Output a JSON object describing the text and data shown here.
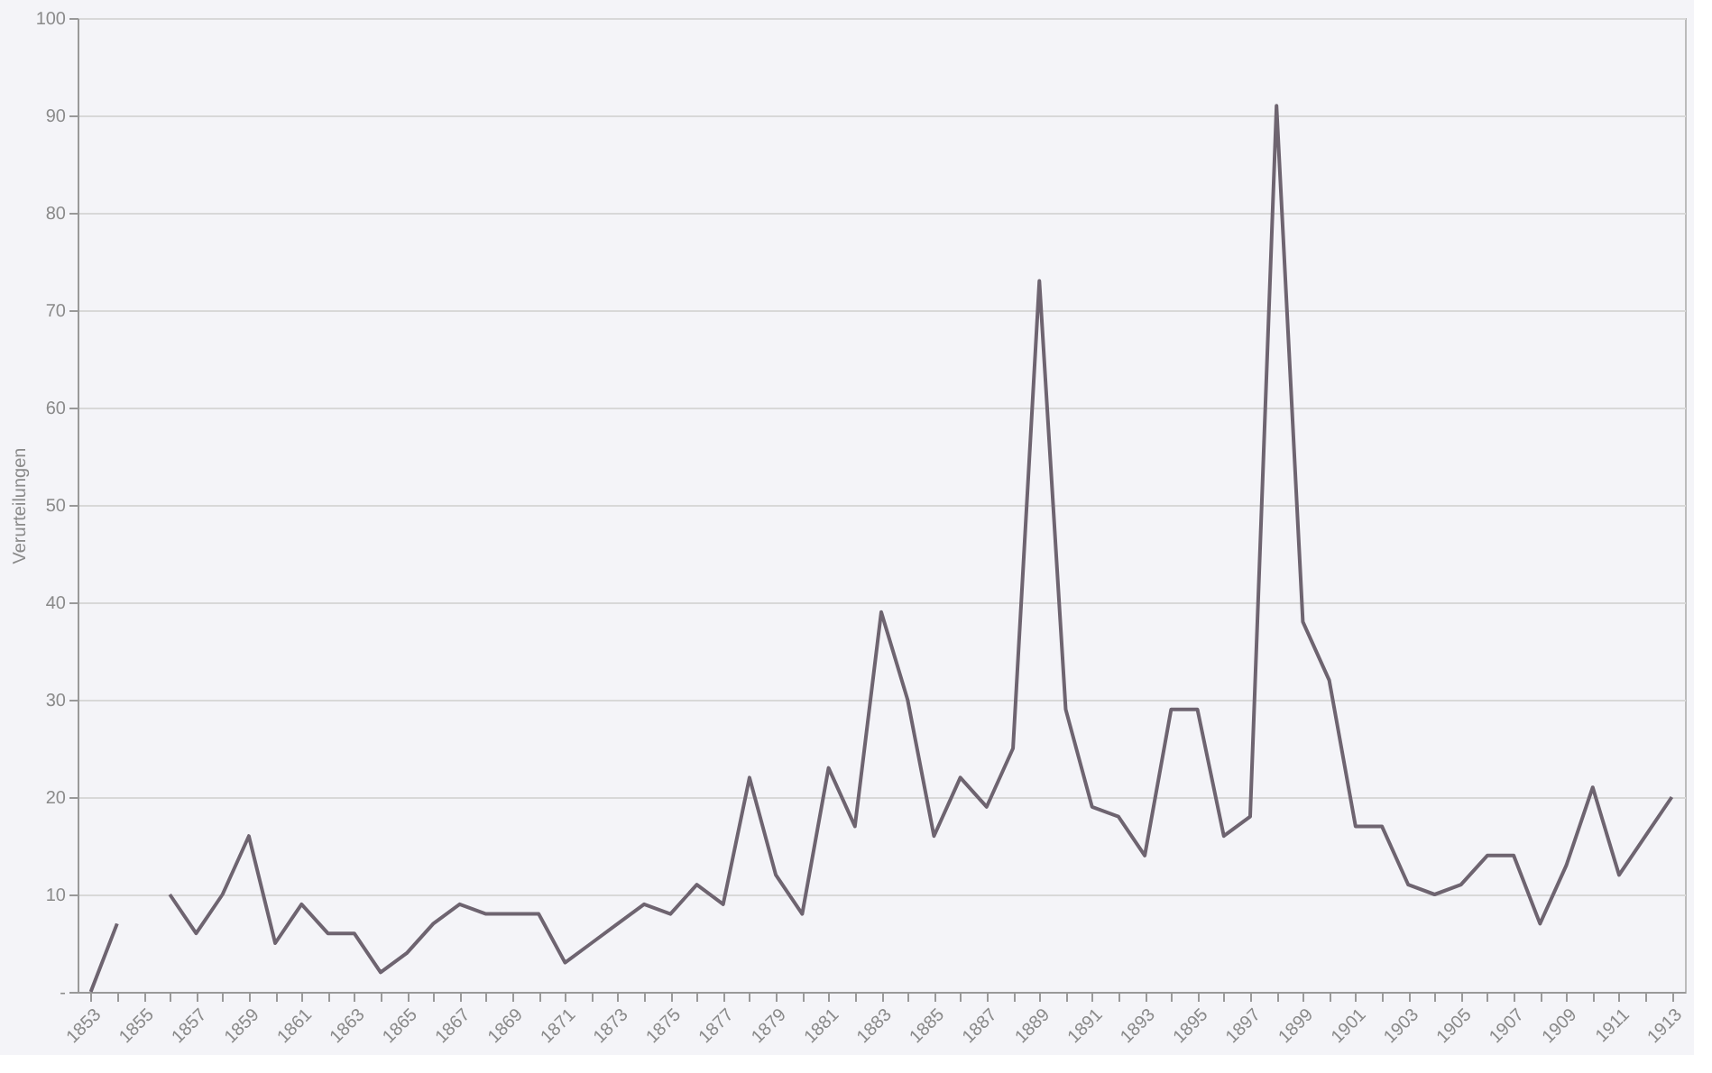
{
  "chart_data": {
    "type": "line",
    "ylabel": "Verurteilungen",
    "categories": [
      "1853",
      null,
      "1855",
      null,
      "1857",
      null,
      "1859",
      null,
      "1861",
      null,
      "1863",
      null,
      "1865",
      null,
      "1867",
      null,
      "1869",
      null,
      "1871",
      null,
      "1873",
      null,
      "1875",
      null,
      "1877",
      null,
      "1879",
      null,
      "1881",
      null,
      "1883",
      null,
      "1885",
      null,
      "1887",
      null,
      "1889",
      null,
      "1891",
      null,
      "1893",
      null,
      "1895",
      null,
      "1897",
      null,
      "1899",
      null,
      "1901",
      null,
      "1903",
      null,
      "1905",
      null,
      "1907",
      null,
      "1909",
      null,
      "1911",
      null,
      "1913"
    ],
    "series": [
      {
        "color": "#6e6470",
        "values": [
          0,
          7,
          null,
          10,
          6,
          10,
          16,
          5,
          9,
          6,
          6,
          2,
          4,
          7,
          9,
          8,
          8,
          8,
          3,
          5,
          7,
          9,
          8,
          11,
          9,
          22,
          12,
          8,
          23,
          17,
          39,
          30,
          16,
          22,
          19,
          25,
          73,
          29,
          19,
          18,
          14,
          29,
          29,
          16,
          18,
          91,
          38,
          32,
          17,
          17,
          11,
          10,
          11,
          14,
          14,
          7,
          13,
          21,
          12,
          16,
          20
        ]
      }
    ],
    "ylim": [
      0,
      100
    ],
    "yticks": [
      {
        "value": 0,
        "label": "-"
      },
      10,
      20,
      30,
      40,
      50,
      60,
      70,
      80,
      90,
      100
    ],
    "grid": "y",
    "marker": "none",
    "line_style": "solid"
  }
}
